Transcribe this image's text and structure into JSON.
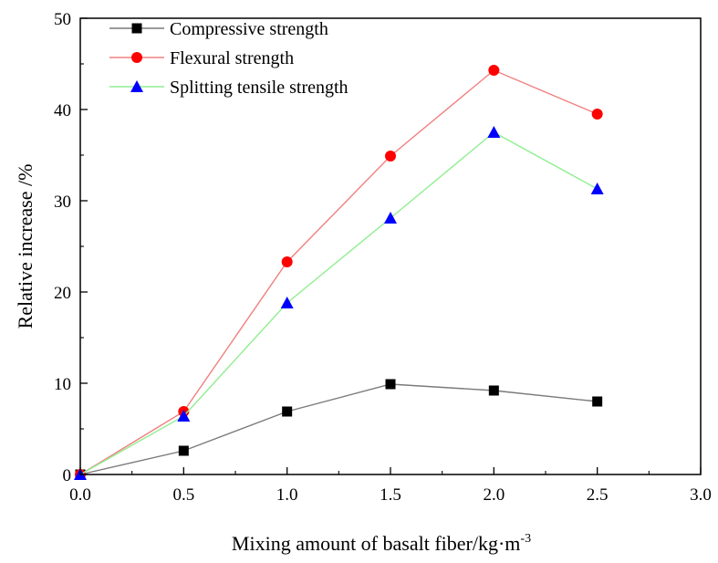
{
  "chart_data": {
    "type": "line",
    "xlabel": "Mixing amount of basalt fiber/kg·m",
    "xlabel_superscript": "-3",
    "ylabel": "Relative increase /%",
    "xlim": [
      0,
      3.0
    ],
    "ylim": [
      0,
      50
    ],
    "x_ticks": [
      "0.0",
      "0.5",
      "1.0",
      "1.5",
      "2.0",
      "2.5",
      "3.0"
    ],
    "y_ticks": [
      "0",
      "10",
      "20",
      "30",
      "40",
      "50"
    ],
    "grid": false,
    "legend_position": "top-left",
    "x": [
      0.0,
      0.5,
      1.0,
      1.5,
      2.0,
      2.5
    ],
    "series": [
      {
        "name": "Compressive strength",
        "marker": "square",
        "marker_color": "#000000",
        "line_color": "#7a7a7a",
        "values": [
          0,
          2.6,
          6.9,
          9.9,
          9.2,
          8.0
        ]
      },
      {
        "name": "Flexural strength",
        "marker": "circle",
        "marker_color": "#ff0000",
        "line_color": "#f08080",
        "values": [
          0,
          6.9,
          23.3,
          34.9,
          44.3,
          39.5
        ]
      },
      {
        "name": "Splitting tensile strength",
        "marker": "triangle",
        "marker_color": "#0000ff",
        "line_color": "#90ee90",
        "values": [
          0,
          6.4,
          18.8,
          28.1,
          37.5,
          31.3
        ]
      }
    ]
  }
}
